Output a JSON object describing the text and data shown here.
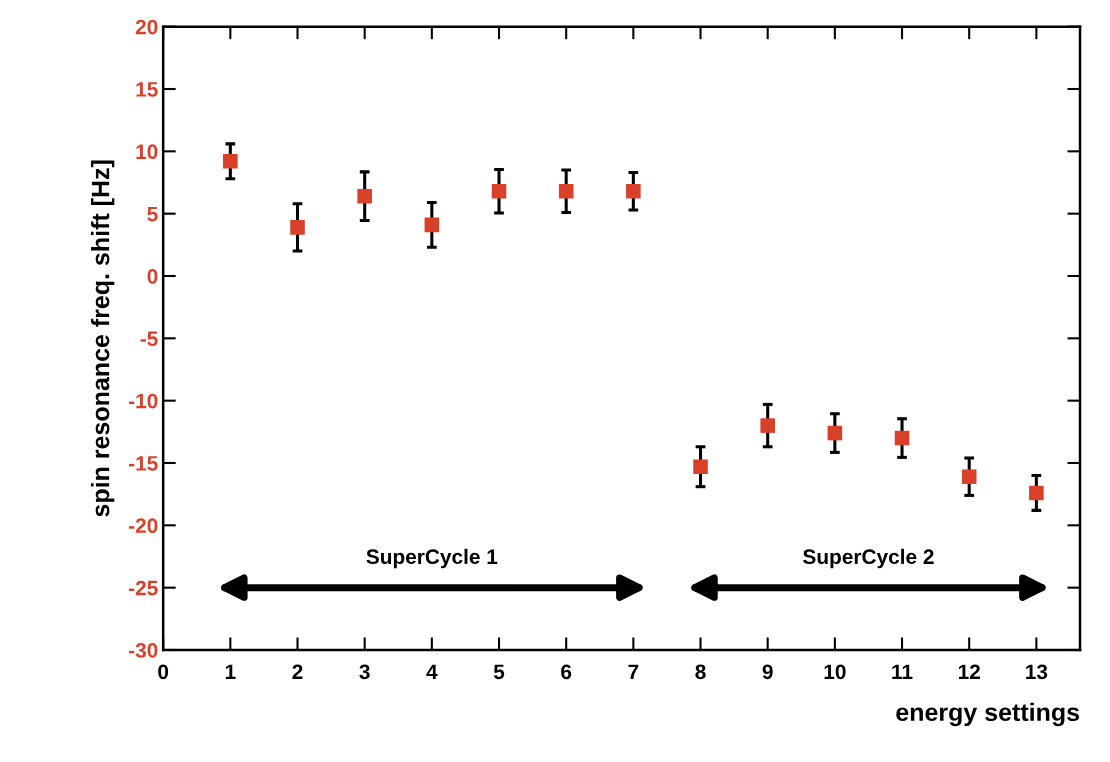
{
  "chart_data": {
    "type": "scatter",
    "xlabel": "energy settings",
    "ylabel": "spin resonance freq. shift [Hz]",
    "x": [
      1,
      2,
      3,
      4,
      5,
      6,
      7,
      8,
      9,
      10,
      11,
      12,
      13
    ],
    "values": [
      9.2,
      3.9,
      6.4,
      4.1,
      6.8,
      6.8,
      6.8,
      -15.3,
      -12.0,
      -12.6,
      -13.0,
      -16.1,
      -17.4
    ],
    "errors": [
      1.4,
      1.9,
      1.95,
      1.8,
      1.75,
      1.7,
      1.5,
      1.6,
      1.7,
      1.55,
      1.55,
      1.5,
      1.4
    ],
    "color": "#d9402a",
    "marker": "square",
    "grid": false,
    "legend": false,
    "xlim": [
      0,
      13.65
    ],
    "xticks": [
      0,
      1,
      2,
      3,
      4,
      5,
      6,
      7,
      8,
      9,
      10,
      11,
      12,
      13
    ],
    "ylim": [
      -30,
      20
    ],
    "yticks": [
      -30,
      -25,
      -20,
      -15,
      -10,
      -5,
      0,
      5,
      10,
      15,
      20
    ],
    "annotations": [
      "SuperCycle 1",
      "SuperCycle 2"
    ]
  }
}
